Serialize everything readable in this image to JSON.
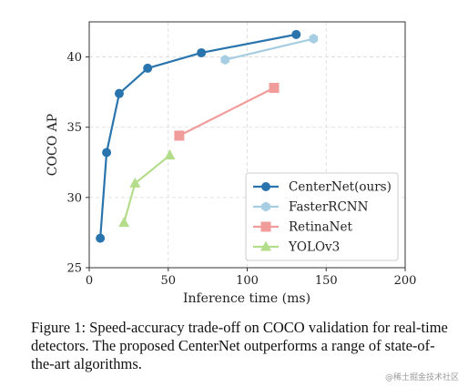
{
  "chart_data": {
    "type": "line",
    "xlabel": "Inference time (ms)",
    "ylabel": "COCO AP",
    "xlim": [
      0,
      200
    ],
    "ylim": [
      25,
      42.5
    ],
    "xticks": [
      0,
      50,
      100,
      150,
      200
    ],
    "yticks": [
      25,
      30,
      35,
      40
    ],
    "grid": true,
    "legend_position": "lower-right",
    "series": [
      {
        "name": "CenterNet(ours)",
        "marker": "circle",
        "color": "#2a74ae",
        "x": [
          7,
          11,
          19,
          37,
          71,
          131
        ],
        "y": [
          27.1,
          33.2,
          37.4,
          39.2,
          40.3,
          41.6
        ]
      },
      {
        "name": "FasterRCNN",
        "marker": "hexagon",
        "color": "#a6cde2",
        "x": [
          86,
          142
        ],
        "y": [
          39.8,
          41.3
        ]
      },
      {
        "name": "RetinaNet",
        "marker": "square",
        "color": "#f09c9a",
        "x": [
          57,
          117
        ],
        "y": [
          34.4,
          37.8
        ]
      },
      {
        "name": "YOLOv3",
        "marker": "triangle",
        "color": "#b3dd8b",
        "x": [
          22,
          29,
          51
        ],
        "y": [
          28.2,
          31.0,
          33.0
        ]
      }
    ]
  },
  "caption": "Figure 1: Speed-accuracy trade-off on COCO validation for real-time detectors. The proposed CenterNet outperforms a range of state-of-the-art algorithms.",
  "watermark": "@稀土掘金技术社区"
}
